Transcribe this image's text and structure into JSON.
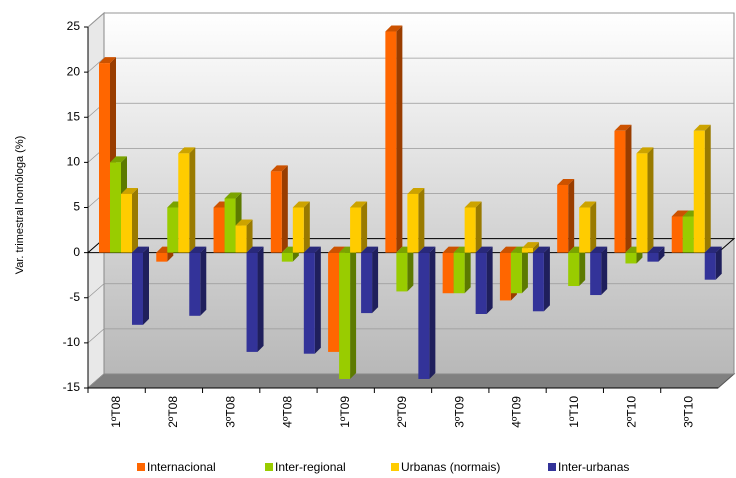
{
  "chart_data": {
    "type": "bar3d",
    "y_label": "Var. trimestral homóloga (%)",
    "categories": [
      "1ºT08",
      "2ºT08",
      "3ºT08",
      "4ºT08",
      "1ºT09",
      "2ºT09",
      "3ºT09",
      "4ºT09",
      "1ºT10",
      "2ºT10",
      "3ºT10"
    ],
    "series": [
      {
        "name": "Internacional",
        "color": "#ff6600",
        "values": [
          21,
          -1,
          5,
          9,
          -11,
          24.5,
          -4.5,
          -5.3,
          7.5,
          13.5,
          4
        ]
      },
      {
        "name": "Inter-regional",
        "color": "#99cc00",
        "values": [
          10,
          5,
          6,
          -1,
          -14,
          -4.3,
          -4.5,
          -4.5,
          -3.7,
          -1.2,
          4
        ]
      },
      {
        "name": "Urbanas (normais)",
        "color": "#ffcc00",
        "values": [
          6.5,
          11,
          3,
          5,
          5,
          6.5,
          5,
          0.5,
          5,
          11,
          13.5
        ]
      },
      {
        "name": "Inter-urbanas",
        "color": "#333399",
        "values": [
          -8,
          -7,
          -11,
          -11.2,
          -6.7,
          -14,
          -6.8,
          -6.5,
          -4.7,
          -1,
          -3
        ]
      }
    ],
    "ylim": [
      -15,
      25
    ],
    "yticks": [
      -15,
      -10,
      -5,
      0,
      5,
      10,
      15,
      20,
      25
    ],
    "grid": true
  }
}
